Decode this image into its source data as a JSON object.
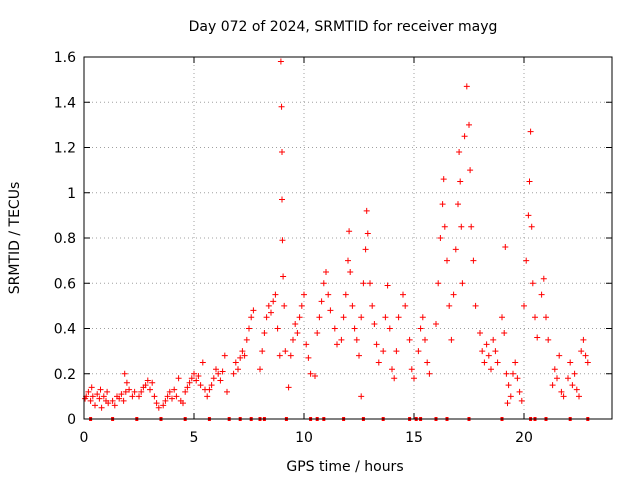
{
  "chart_data": {
    "type": "scatter",
    "title": "Day 072 of 2024, SRMTID for receiver mayg",
    "xlabel": "GPS time / hours",
    "ylabel": "SRMTID / TECUs",
    "xlim": [
      0,
      24
    ],
    "ylim": [
      0,
      1.6
    ],
    "xticks": [
      0,
      5,
      10,
      15,
      20
    ],
    "yticks": [
      0,
      0.2,
      0.4,
      0.6,
      0.8,
      1,
      1.2,
      1.4,
      1.6
    ],
    "ytick_labels": [
      "0",
      "0.2",
      "0.4",
      "0.6",
      "0.8",
      "1",
      "1.2",
      "1.4",
      "1.6"
    ],
    "grid": true,
    "marker": "+",
    "color": "#ff0000",
    "series": [
      {
        "name": "SRMTID",
        "points": [
          [
            0.05,
            0.09
          ],
          [
            0.1,
            0.1
          ],
          [
            0.2,
            0.12
          ],
          [
            0.3,
            0.08
          ],
          [
            0.4,
            0.1
          ],
          [
            0.5,
            0.06
          ],
          [
            0.6,
            0.11
          ],
          [
            0.7,
            0.09
          ],
          [
            0.8,
            0.05
          ],
          [
            0.9,
            0.1
          ],
          [
            1.0,
            0.08
          ],
          [
            1.05,
            0.12
          ],
          [
            1.1,
            0.07
          ],
          [
            0.35,
            0.14
          ],
          [
            0.75,
            0.13
          ],
          [
            1.3,
            0.08
          ],
          [
            1.4,
            0.06
          ],
          [
            1.5,
            0.1
          ],
          [
            1.6,
            0.09
          ],
          [
            1.7,
            0.11
          ],
          [
            1.8,
            0.08
          ],
          [
            1.9,
            0.12
          ],
          [
            1.85,
            0.2
          ],
          [
            1.95,
            0.16
          ],
          [
            2.05,
            0.13
          ],
          [
            2.2,
            0.1
          ],
          [
            2.3,
            0.12
          ],
          [
            2.5,
            0.1
          ],
          [
            2.6,
            0.12
          ],
          [
            2.7,
            0.14
          ],
          [
            2.8,
            0.15
          ],
          [
            2.9,
            0.17
          ],
          [
            3.0,
            0.13
          ],
          [
            3.1,
            0.16
          ],
          [
            3.2,
            0.1
          ],
          [
            3.3,
            0.07
          ],
          [
            3.4,
            0.05
          ],
          [
            3.6,
            0.06
          ],
          [
            3.7,
            0.08
          ],
          [
            3.8,
            0.1
          ],
          [
            3.9,
            0.12
          ],
          [
            4.0,
            0.09
          ],
          [
            4.1,
            0.13
          ],
          [
            4.2,
            0.1
          ],
          [
            4.3,
            0.18
          ],
          [
            4.4,
            0.08
          ],
          [
            4.5,
            0.07
          ],
          [
            4.6,
            0.12
          ],
          [
            4.7,
            0.14
          ],
          [
            4.8,
            0.16
          ],
          [
            4.9,
            0.18
          ],
          [
            5.0,
            0.2
          ],
          [
            5.1,
            0.17
          ],
          [
            5.2,
            0.19
          ],
          [
            5.3,
            0.15
          ],
          [
            5.4,
            0.25
          ],
          [
            5.5,
            0.13
          ],
          [
            5.6,
            0.1
          ],
          [
            5.7,
            0.13
          ],
          [
            5.8,
            0.15
          ],
          [
            5.9,
            0.18
          ],
          [
            6.0,
            0.22
          ],
          [
            6.1,
            0.2
          ],
          [
            6.2,
            0.17
          ],
          [
            6.3,
            0.21
          ],
          [
            6.4,
            0.28
          ],
          [
            6.5,
            0.12
          ],
          [
            6.8,
            0.2
          ],
          [
            6.9,
            0.25
          ],
          [
            7.0,
            0.22
          ],
          [
            7.1,
            0.27
          ],
          [
            7.2,
            0.3
          ],
          [
            7.3,
            0.28
          ],
          [
            7.4,
            0.35
          ],
          [
            7.5,
            0.4
          ],
          [
            7.6,
            0.45
          ],
          [
            7.7,
            0.48
          ],
          [
            8.0,
            0.22
          ],
          [
            8.1,
            0.3
          ],
          [
            8.2,
            0.38
          ],
          [
            8.3,
            0.45
          ],
          [
            8.4,
            0.5
          ],
          [
            8.5,
            0.47
          ],
          [
            8.6,
            0.52
          ],
          [
            8.7,
            0.55
          ],
          [
            8.8,
            0.4
          ],
          [
            8.9,
            0.28
          ],
          [
            8.95,
            1.58
          ],
          [
            8.98,
            1.38
          ],
          [
            9.0,
            1.18
          ],
          [
            9.0,
            0.97
          ],
          [
            9.02,
            0.79
          ],
          [
            9.05,
            0.63
          ],
          [
            9.1,
            0.5
          ],
          [
            9.15,
            0.3
          ],
          [
            9.3,
            0.14
          ],
          [
            9.4,
            0.28
          ],
          [
            9.5,
            0.35
          ],
          [
            9.6,
            0.42
          ],
          [
            9.7,
            0.38
          ],
          [
            9.8,
            0.45
          ],
          [
            9.9,
            0.5
          ],
          [
            10.0,
            0.55
          ],
          [
            10.1,
            0.33
          ],
          [
            10.2,
            0.27
          ],
          [
            10.3,
            0.2
          ],
          [
            10.5,
            0.19
          ],
          [
            10.6,
            0.38
          ],
          [
            10.7,
            0.45
          ],
          [
            10.8,
            0.52
          ],
          [
            10.9,
            0.6
          ],
          [
            11.0,
            0.65
          ],
          [
            11.1,
            0.55
          ],
          [
            11.2,
            0.48
          ],
          [
            11.4,
            0.4
          ],
          [
            11.5,
            0.33
          ],
          [
            11.7,
            0.35
          ],
          [
            11.8,
            0.45
          ],
          [
            11.9,
            0.55
          ],
          [
            12.0,
            0.7
          ],
          [
            12.05,
            0.83
          ],
          [
            12.1,
            0.65
          ],
          [
            12.2,
            0.5
          ],
          [
            12.3,
            0.4
          ],
          [
            12.4,
            0.35
          ],
          [
            12.5,
            0.28
          ],
          [
            12.6,
            0.45
          ],
          [
            12.7,
            0.6
          ],
          [
            12.8,
            0.75
          ],
          [
            12.85,
            0.92
          ],
          [
            12.9,
            0.82
          ],
          [
            13.0,
            0.6
          ],
          [
            13.1,
            0.5
          ],
          [
            13.2,
            0.42
          ],
          [
            13.3,
            0.33
          ],
          [
            13.4,
            0.25
          ],
          [
            12.6,
            0.1
          ],
          [
            13.6,
            0.3
          ],
          [
            13.7,
            0.45
          ],
          [
            13.8,
            0.59
          ],
          [
            13.9,
            0.4
          ],
          [
            14.0,
            0.22
          ],
          [
            14.1,
            0.18
          ],
          [
            14.2,
            0.3
          ],
          [
            14.3,
            0.45
          ],
          [
            14.5,
            0.55
          ],
          [
            14.6,
            0.5
          ],
          [
            14.8,
            0.35
          ],
          [
            14.9,
            0.22
          ],
          [
            15.0,
            0.18
          ],
          [
            15.2,
            0.3
          ],
          [
            15.3,
            0.4
          ],
          [
            15.4,
            0.45
          ],
          [
            15.5,
            0.35
          ],
          [
            15.6,
            0.25
          ],
          [
            15.7,
            0.2
          ],
          [
            16.0,
            0.42
          ],
          [
            16.1,
            0.6
          ],
          [
            16.2,
            0.8
          ],
          [
            16.3,
            0.95
          ],
          [
            16.35,
            1.06
          ],
          [
            16.4,
            0.85
          ],
          [
            16.5,
            0.7
          ],
          [
            16.6,
            0.5
          ],
          [
            16.7,
            0.35
          ],
          [
            16.8,
            0.55
          ],
          [
            16.9,
            0.75
          ],
          [
            17.0,
            0.95
          ],
          [
            17.05,
            1.18
          ],
          [
            17.1,
            1.05
          ],
          [
            17.15,
            0.85
          ],
          [
            17.2,
            0.6
          ],
          [
            17.3,
            1.25
          ],
          [
            17.4,
            1.47
          ],
          [
            17.5,
            1.3
          ],
          [
            17.55,
            1.1
          ],
          [
            17.6,
            0.85
          ],
          [
            17.7,
            0.7
          ],
          [
            17.8,
            0.5
          ],
          [
            18.0,
            0.38
          ],
          [
            18.1,
            0.3
          ],
          [
            18.2,
            0.25
          ],
          [
            18.3,
            0.33
          ],
          [
            18.4,
            0.28
          ],
          [
            18.5,
            0.22
          ],
          [
            18.6,
            0.35
          ],
          [
            18.7,
            0.3
          ],
          [
            18.8,
            0.25
          ],
          [
            19.0,
            0.45
          ],
          [
            19.1,
            0.38
          ],
          [
            19.15,
            0.76
          ],
          [
            19.2,
            0.2
          ],
          [
            19.3,
            0.15
          ],
          [
            19.4,
            0.1
          ],
          [
            19.5,
            0.2
          ],
          [
            19.6,
            0.25
          ],
          [
            19.7,
            0.18
          ],
          [
            19.8,
            0.12
          ],
          [
            19.9,
            0.08
          ],
          [
            19.25,
            0.07
          ],
          [
            20.0,
            0.5
          ],
          [
            20.1,
            0.7
          ],
          [
            20.2,
            0.9
          ],
          [
            20.25,
            1.05
          ],
          [
            20.3,
            1.27
          ],
          [
            20.35,
            0.85
          ],
          [
            20.4,
            0.6
          ],
          [
            20.5,
            0.45
          ],
          [
            20.6,
            0.36
          ],
          [
            20.8,
            0.55
          ],
          [
            20.9,
            0.62
          ],
          [
            21.0,
            0.45
          ],
          [
            21.1,
            0.35
          ],
          [
            21.3,
            0.15
          ],
          [
            21.4,
            0.22
          ],
          [
            21.5,
            0.18
          ],
          [
            21.6,
            0.28
          ],
          [
            21.7,
            0.12
          ],
          [
            21.8,
            0.1
          ],
          [
            22.0,
            0.18
          ],
          [
            22.1,
            0.25
          ],
          [
            22.2,
            0.15
          ],
          [
            22.3,
            0.2
          ],
          [
            22.4,
            0.13
          ],
          [
            22.5,
            0.1
          ],
          [
            22.6,
            0.3
          ],
          [
            22.7,
            0.35
          ],
          [
            22.8,
            0.28
          ],
          [
            22.9,
            0.25
          ]
        ]
      }
    ],
    "rug_x": [
      0.3,
      1.3,
      2.4,
      3.5,
      4.6,
      5.7,
      6.6,
      7.1,
      7.6,
      8.0,
      8.2,
      9.2,
      10.3,
      10.6,
      10.9,
      11.8,
      12.7,
      13.6,
      14.8,
      15.1,
      15.3,
      16.0,
      16.5,
      17.5,
      19.0,
      20.3,
      20.5,
      21.0,
      22.1,
      22.9
    ]
  }
}
